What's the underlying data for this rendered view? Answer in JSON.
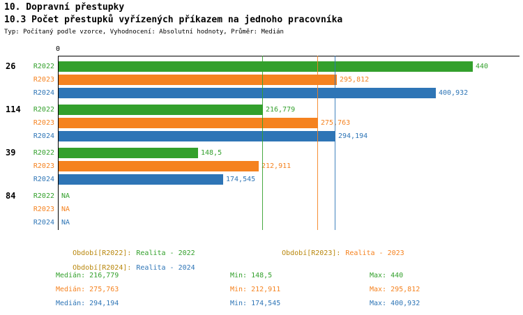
{
  "header": {
    "title": "10. Dopravní přestupky",
    "subtitle": "10.3 Počet přestupků vyřízených příkazem na jednoho pracovníka",
    "meta": "Typ: Počítaný podle vzorce, Vyhodnocení: Absolutní hodnoty, Průměr: Medián"
  },
  "chart_data": {
    "type": "bar",
    "orientation": "horizontal",
    "x_origin_label": "0",
    "xlim": [
      0,
      440
    ],
    "grid": false,
    "categories": [
      "26",
      "114",
      "39",
      "84"
    ],
    "series": [
      {
        "name": "R2022",
        "period": "Realita - 2022",
        "color": "#33a02c",
        "values": [
          440,
          216.779,
          148.5,
          null
        ],
        "value_labels": [
          "440",
          "216,779",
          "148,5",
          "NA"
        ],
        "median": 216.779
      },
      {
        "name": "R2023",
        "period": "Realita - 2023",
        "color": "#f5821f",
        "values": [
          295.812,
          275.763,
          212.911,
          null
        ],
        "value_labels": [
          "295,812",
          "275,763",
          "212,911",
          "NA"
        ],
        "median": 275.763
      },
      {
        "name": "R2024",
        "period": "Realita - 2024",
        "color": "#2e75b6",
        "values": [
          400.932,
          294.194,
          174.545,
          null
        ],
        "value_labels": [
          "400,932",
          "294,194",
          "174,545",
          "NA"
        ],
        "median": 294.194
      }
    ]
  },
  "legend": {
    "items": [
      {
        "label": "Období[R2022]:",
        "value": "Realita - 2022"
      },
      {
        "label": "Období[R2023]:",
        "value": "Realita - 2023"
      },
      {
        "label": "Období[R2024]:",
        "value": "Realita - 2024"
      }
    ]
  },
  "stats": {
    "rows": [
      {
        "median": "Medián: 216,779",
        "min": "Min: 148,5",
        "max": "Max: 440"
      },
      {
        "median": "Medián: 275,763",
        "min": "Min: 212,911",
        "max": "Max: 295,812"
      },
      {
        "median": "Medián: 294,194",
        "min": "Min: 174,545",
        "max": "Max: 400,932"
      }
    ]
  },
  "colors": {
    "r2022": "#33a02c",
    "r2023": "#f5821f",
    "r2024": "#2e75b6",
    "legend_label": "#b8860b",
    "axis": "#000000",
    "background": "#ffffff"
  }
}
